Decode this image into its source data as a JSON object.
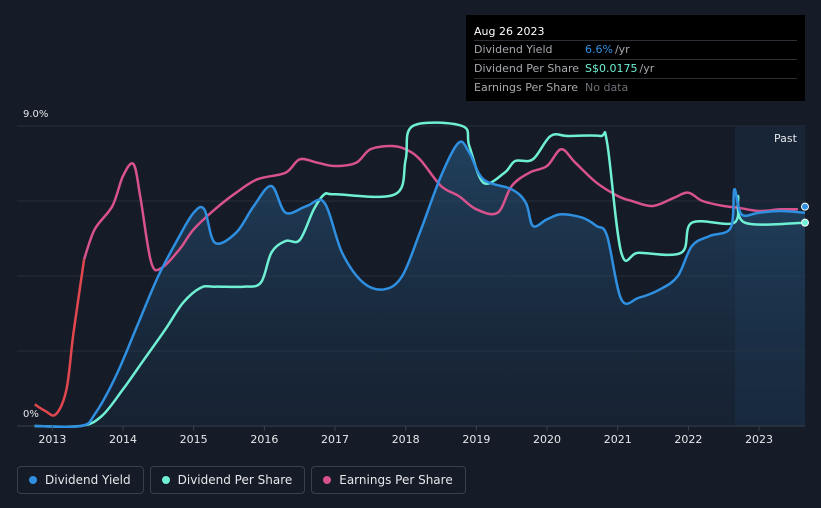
{
  "tooltip": {
    "date": "Aug 26 2023",
    "rows": [
      {
        "label": "Dividend Yield",
        "value": "6.6%",
        "unit": "/yr",
        "color": "#2f8fe0"
      },
      {
        "label": "Dividend Per Share",
        "value": "S$0.0175",
        "unit": "/yr",
        "color": "#6ff0d4"
      },
      {
        "label": "Earnings Per Share",
        "value": "No data"
      }
    ]
  },
  "legend": [
    {
      "label": "Dividend Yield",
      "color": "#2f8fe0"
    },
    {
      "label": "Dividend Per Share",
      "color": "#6ff0d4"
    },
    {
      "label": "Earnings Per Share",
      "color": "#d8528e"
    }
  ],
  "chart_data": {
    "type": "line",
    "title": "",
    "xlabel": "",
    "ylabel": "",
    "x_ticks": [
      "2013",
      "2014",
      "2015",
      "2016",
      "2017",
      "2018",
      "2019",
      "2020",
      "2021",
      "2022",
      "2023"
    ],
    "y_axis_labels": [
      "9.0%",
      "0%"
    ],
    "ylim": [
      0,
      9.0
    ],
    "xlim": [
      2012.5,
      2023.65
    ],
    "past_label": "Past",
    "series": [
      {
        "name": "Dividend Yield",
        "color": "#2f8fe0",
        "unit": "%",
        "points": [
          [
            2012.75,
            0
          ],
          [
            2013.4,
            0
          ],
          [
            2013.6,
            0.35
          ],
          [
            2013.9,
            1.5
          ],
          [
            2014.2,
            3.0
          ],
          [
            2014.5,
            4.5
          ],
          [
            2014.8,
            5.7
          ],
          [
            2015.0,
            6.4
          ],
          [
            2015.15,
            6.5
          ],
          [
            2015.3,
            5.5
          ],
          [
            2015.6,
            5.8
          ],
          [
            2015.85,
            6.6
          ],
          [
            2016.1,
            7.2
          ],
          [
            2016.3,
            6.4
          ],
          [
            2016.6,
            6.6
          ],
          [
            2016.85,
            6.7
          ],
          [
            2017.1,
            5.2
          ],
          [
            2017.4,
            4.3
          ],
          [
            2017.7,
            4.1
          ],
          [
            2017.95,
            4.5
          ],
          [
            2018.2,
            5.8
          ],
          [
            2018.5,
            7.5
          ],
          [
            2018.75,
            8.5
          ],
          [
            2018.9,
            8.2
          ],
          [
            2019.1,
            7.4
          ],
          [
            2019.5,
            7.1
          ],
          [
            2019.7,
            6.7
          ],
          [
            2019.8,
            6.0
          ],
          [
            2020.0,
            6.2
          ],
          [
            2020.2,
            6.35
          ],
          [
            2020.5,
            6.25
          ],
          [
            2020.7,
            6.0
          ],
          [
            2020.85,
            5.7
          ],
          [
            2021.05,
            3.8
          ],
          [
            2021.3,
            3.85
          ],
          [
            2021.6,
            4.1
          ],
          [
            2021.85,
            4.5
          ],
          [
            2022.05,
            5.4
          ],
          [
            2022.3,
            5.7
          ],
          [
            2022.6,
            5.95
          ],
          [
            2022.65,
            7.1
          ],
          [
            2022.75,
            6.35
          ],
          [
            2023.0,
            6.4
          ],
          [
            2023.3,
            6.45
          ],
          [
            2023.65,
            6.4
          ]
        ]
      },
      {
        "name": "Dividend Per Share",
        "color": "#6ff0d4",
        "unit": "S$",
        "points": [
          [
            2012.75,
            0
          ],
          [
            2013.4,
            0
          ],
          [
            2013.7,
            0.3
          ],
          [
            2014.0,
            1.1
          ],
          [
            2014.3,
            2.0
          ],
          [
            2014.6,
            2.9
          ],
          [
            2014.85,
            3.7
          ],
          [
            2015.1,
            4.15
          ],
          [
            2015.3,
            4.18
          ],
          [
            2015.7,
            4.18
          ],
          [
            2015.95,
            4.3
          ],
          [
            2016.1,
            5.2
          ],
          [
            2016.3,
            5.55
          ],
          [
            2016.5,
            5.58
          ],
          [
            2016.7,
            6.5
          ],
          [
            2016.85,
            6.95
          ],
          [
            2017.0,
            6.95
          ],
          [
            2017.85,
            6.95
          ],
          [
            2018.0,
            8.0
          ],
          [
            2018.1,
            9.0
          ],
          [
            2018.8,
            9.0
          ],
          [
            2018.9,
            8.4
          ],
          [
            2019.1,
            7.3
          ],
          [
            2019.4,
            7.6
          ],
          [
            2019.55,
            7.95
          ],
          [
            2019.8,
            8.0
          ],
          [
            2020.05,
            8.7
          ],
          [
            2020.3,
            8.7
          ],
          [
            2020.75,
            8.7
          ],
          [
            2020.85,
            8.5
          ],
          [
            2021.05,
            5.2
          ],
          [
            2021.3,
            5.2
          ],
          [
            2021.9,
            5.2
          ],
          [
            2022.05,
            6.1
          ],
          [
            2022.65,
            6.1
          ],
          [
            2022.7,
            6.9
          ],
          [
            2022.8,
            6.1
          ],
          [
            2023.65,
            6.1
          ]
        ]
      },
      {
        "name": "Earnings Per Share",
        "color": "#d8528e",
        "unit": "",
        "points": [
          [
            2012.75,
            0.65
          ],
          [
            2012.9,
            0.45
          ],
          [
            2013.05,
            0.35
          ],
          [
            2013.2,
            1.1
          ],
          [
            2013.3,
            2.8
          ],
          [
            2013.45,
            5.0
          ],
          [
            2013.6,
            5.9
          ],
          [
            2013.85,
            6.6
          ],
          [
            2014.0,
            7.5
          ],
          [
            2014.15,
            7.85
          ],
          [
            2014.25,
            6.8
          ],
          [
            2014.4,
            4.9
          ],
          [
            2014.55,
            4.75
          ],
          [
            2014.8,
            5.3
          ],
          [
            2015.0,
            5.9
          ],
          [
            2015.3,
            6.5
          ],
          [
            2015.6,
            7.0
          ],
          [
            2015.9,
            7.4
          ],
          [
            2016.3,
            7.6
          ],
          [
            2016.5,
            8.0
          ],
          [
            2016.75,
            7.9
          ],
          [
            2017.0,
            7.8
          ],
          [
            2017.3,
            7.9
          ],
          [
            2017.5,
            8.3
          ],
          [
            2017.8,
            8.4
          ],
          [
            2018.0,
            8.3
          ],
          [
            2018.2,
            8.0
          ],
          [
            2018.5,
            7.2
          ],
          [
            2018.75,
            6.9
          ],
          [
            2019.0,
            6.5
          ],
          [
            2019.3,
            6.4
          ],
          [
            2019.5,
            7.2
          ],
          [
            2019.75,
            7.6
          ],
          [
            2020.0,
            7.8
          ],
          [
            2020.2,
            8.3
          ],
          [
            2020.4,
            7.9
          ],
          [
            2020.7,
            7.3
          ],
          [
            2021.0,
            6.9
          ],
          [
            2021.2,
            6.75
          ],
          [
            2021.5,
            6.6
          ],
          [
            2021.8,
            6.85
          ],
          [
            2022.0,
            7.0
          ],
          [
            2022.2,
            6.75
          ],
          [
            2022.5,
            6.6
          ],
          [
            2022.7,
            6.55
          ],
          [
            2023.0,
            6.45
          ],
          [
            2023.3,
            6.5
          ],
          [
            2023.55,
            6.5
          ]
        ]
      }
    ]
  }
}
